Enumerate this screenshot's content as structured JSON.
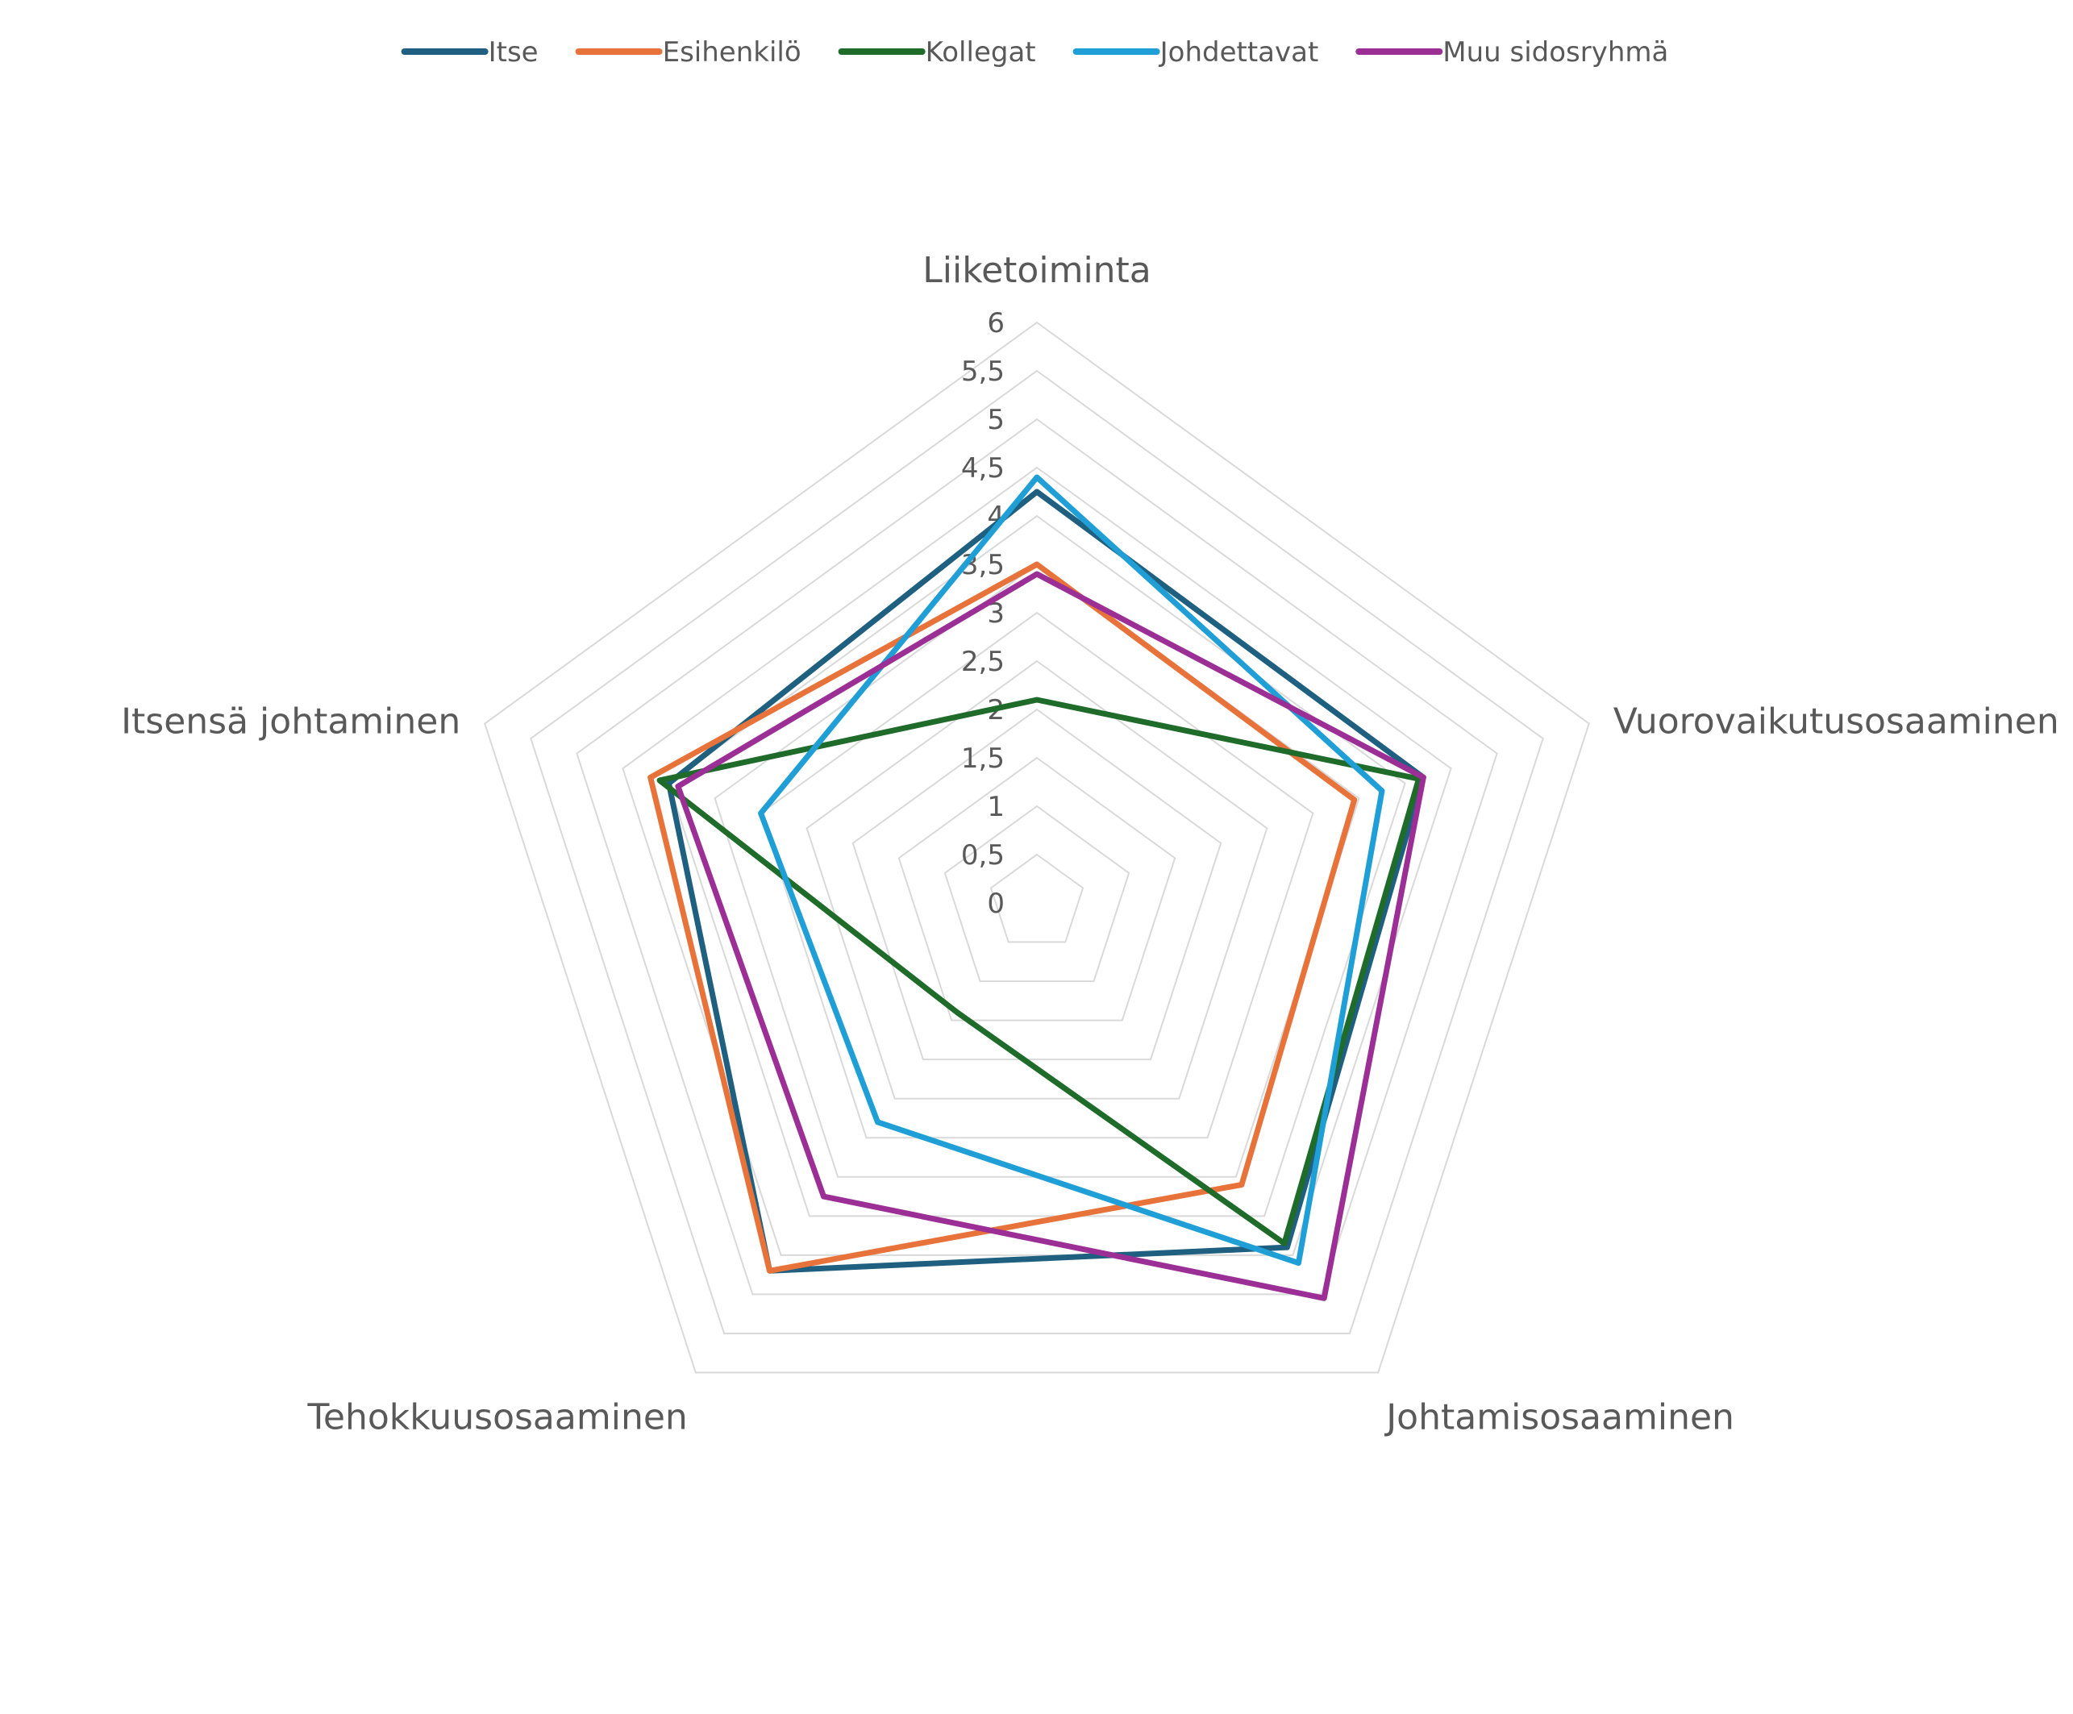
{
  "chart_data": {
    "type": "radar",
    "title": "",
    "categories": [
      "Liiketoiminta",
      "Vuorovaikutusosaaminen",
      "Johtamisosaaminen",
      "Tehokkuusosaaminen",
      "Itsensä johtaminen"
    ],
    "axis": {
      "min": 0,
      "max": 6,
      "step": 0.5,
      "tick_labels": [
        "0",
        "0,5",
        "1",
        "1,5",
        "2",
        "2,5",
        "3",
        "3,5",
        "4",
        "4,5",
        "5",
        "5,5",
        "6"
      ]
    },
    "grid": true,
    "legend_position": "top",
    "series": [
      {
        "name": "Itse",
        "color": "#1f5f7f",
        "values": [
          4.25,
          4.2,
          4.4,
          4.7,
          4.0
        ]
      },
      {
        "name": "Esihenkilö",
        "color": "#e8733a",
        "values": [
          3.5,
          3.45,
          3.6,
          4.7,
          4.2
        ]
      },
      {
        "name": "Kollegat",
        "color": "#1e6b2a",
        "values": [
          2.1,
          4.15,
          4.35,
          1.4,
          4.1
        ]
      },
      {
        "name": "Johdettavat",
        "color": "#1f9fd6",
        "values": [
          4.4,
          3.75,
          4.6,
          2.8,
          3.0
        ]
      },
      {
        "name": "Muu sidosryhmä",
        "color": "#9b2f96",
        "values": [
          3.4,
          4.2,
          5.05,
          3.75,
          3.9
        ]
      }
    ]
  }
}
